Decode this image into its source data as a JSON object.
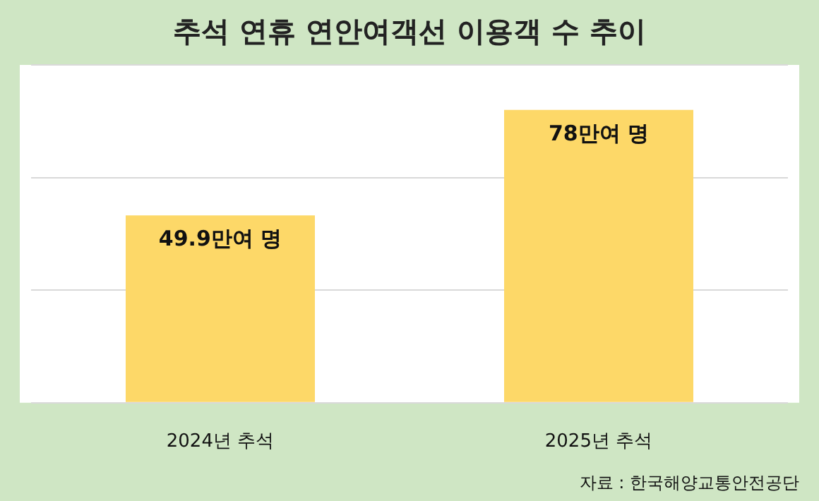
{
  "chart_data": {
    "type": "bar",
    "title": "추석 연휴 연안여객선 이용객 수 추이",
    "categories": [
      "2024년 추석",
      "2025년 추석"
    ],
    "values": [
      49.9,
      78
    ],
    "value_labels": [
      "49.9만여 명",
      "78만여 명"
    ],
    "color": "#fdd868",
    "ylim": [
      0,
      90
    ],
    "yticks": [
      {
        "value": 0,
        "label": null
      },
      {
        "value": 30,
        "label": null
      },
      {
        "value": 60,
        "label": null
      },
      {
        "value": 90,
        "label": null
      }
    ],
    "tick_labels": "x",
    "grid": "y",
    "annotations": [
      "자료 : 한국해양교통안전공단"
    ]
  }
}
